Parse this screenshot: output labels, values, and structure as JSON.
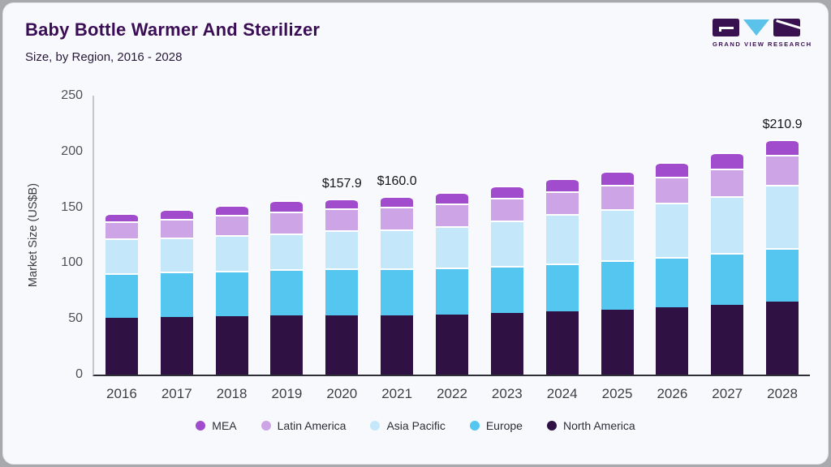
{
  "header": {
    "title": "Baby Bottle Warmer And Sterilizer",
    "subtitle": "Size, by Region, 2016 - 2028"
  },
  "logo": {
    "text": "GRAND VIEW RESEARCH",
    "mark_purple": "#3a1150",
    "mark_blue": "#5bc2ea"
  },
  "chart_data": {
    "type": "bar",
    "stacked": true,
    "title": "Baby Bottle Warmer And Sterilizer Market Size, by Region, 2016 - 2028",
    "ylabel": "Market Size (US$B)",
    "xlabel": "",
    "ylim": [
      0,
      250
    ],
    "yticks": [
      0,
      50,
      100,
      150,
      200,
      250
    ],
    "grid": false,
    "legend_position": "bottom",
    "categories": [
      "2016",
      "2017",
      "2018",
      "2019",
      "2020",
      "2021",
      "2022",
      "2023",
      "2024",
      "2025",
      "2026",
      "2027",
      "2028"
    ],
    "series": [
      {
        "name": "North America",
        "color": "#301143",
        "values": [
          51.0,
          51.5,
          52.3,
          53.0,
          53.4,
          53.2,
          53.8,
          55.4,
          56.7,
          57.8,
          60.0,
          62.3,
          65.4
        ]
      },
      {
        "name": "Europe",
        "color": "#54c6f0",
        "values": [
          40.2,
          40.5,
          40.8,
          41.5,
          41.9,
          41.8,
          42.0,
          42.2,
          43.1,
          44.5,
          45.1,
          46.8,
          48.0
        ]
      },
      {
        "name": "Asia Pacific",
        "color": "#c4e8fa",
        "values": [
          30.8,
          31.2,
          31.6,
          31.8,
          34.2,
          35.2,
          37.1,
          40.2,
          43.8,
          46.2,
          49.0,
          51.0,
          56.9
        ]
      },
      {
        "name": "Latin America",
        "color": "#cda4e6",
        "values": [
          15.1,
          16.5,
          18.4,
          19.8,
          19.7,
          20.3,
          20.5,
          20.9,
          20.5,
          21.4,
          23.5,
          24.8,
          26.7
        ]
      },
      {
        "name": "MEA",
        "color": "#a14ccd",
        "values": [
          7.7,
          8.3,
          9.0,
          9.9,
          8.7,
          9.5,
          10.1,
          10.5,
          11.6,
          12.6,
          13.1,
          14.6,
          13.9
        ]
      }
    ],
    "totals": [
      144.8,
      148.0,
      152.1,
      156.0,
      157.9,
      160.0,
      163.5,
      169.2,
      175.7,
      182.5,
      190.7,
      199.5,
      210.9
    ],
    "annotations": [
      {
        "category": "2020",
        "label": "$157.9"
      },
      {
        "category": "2021",
        "label": "$160.0"
      },
      {
        "category": "2028",
        "label": "$210.9"
      }
    ],
    "legend_order": [
      "MEA",
      "Latin America",
      "Asia Pacific",
      "Europe",
      "North America"
    ]
  }
}
